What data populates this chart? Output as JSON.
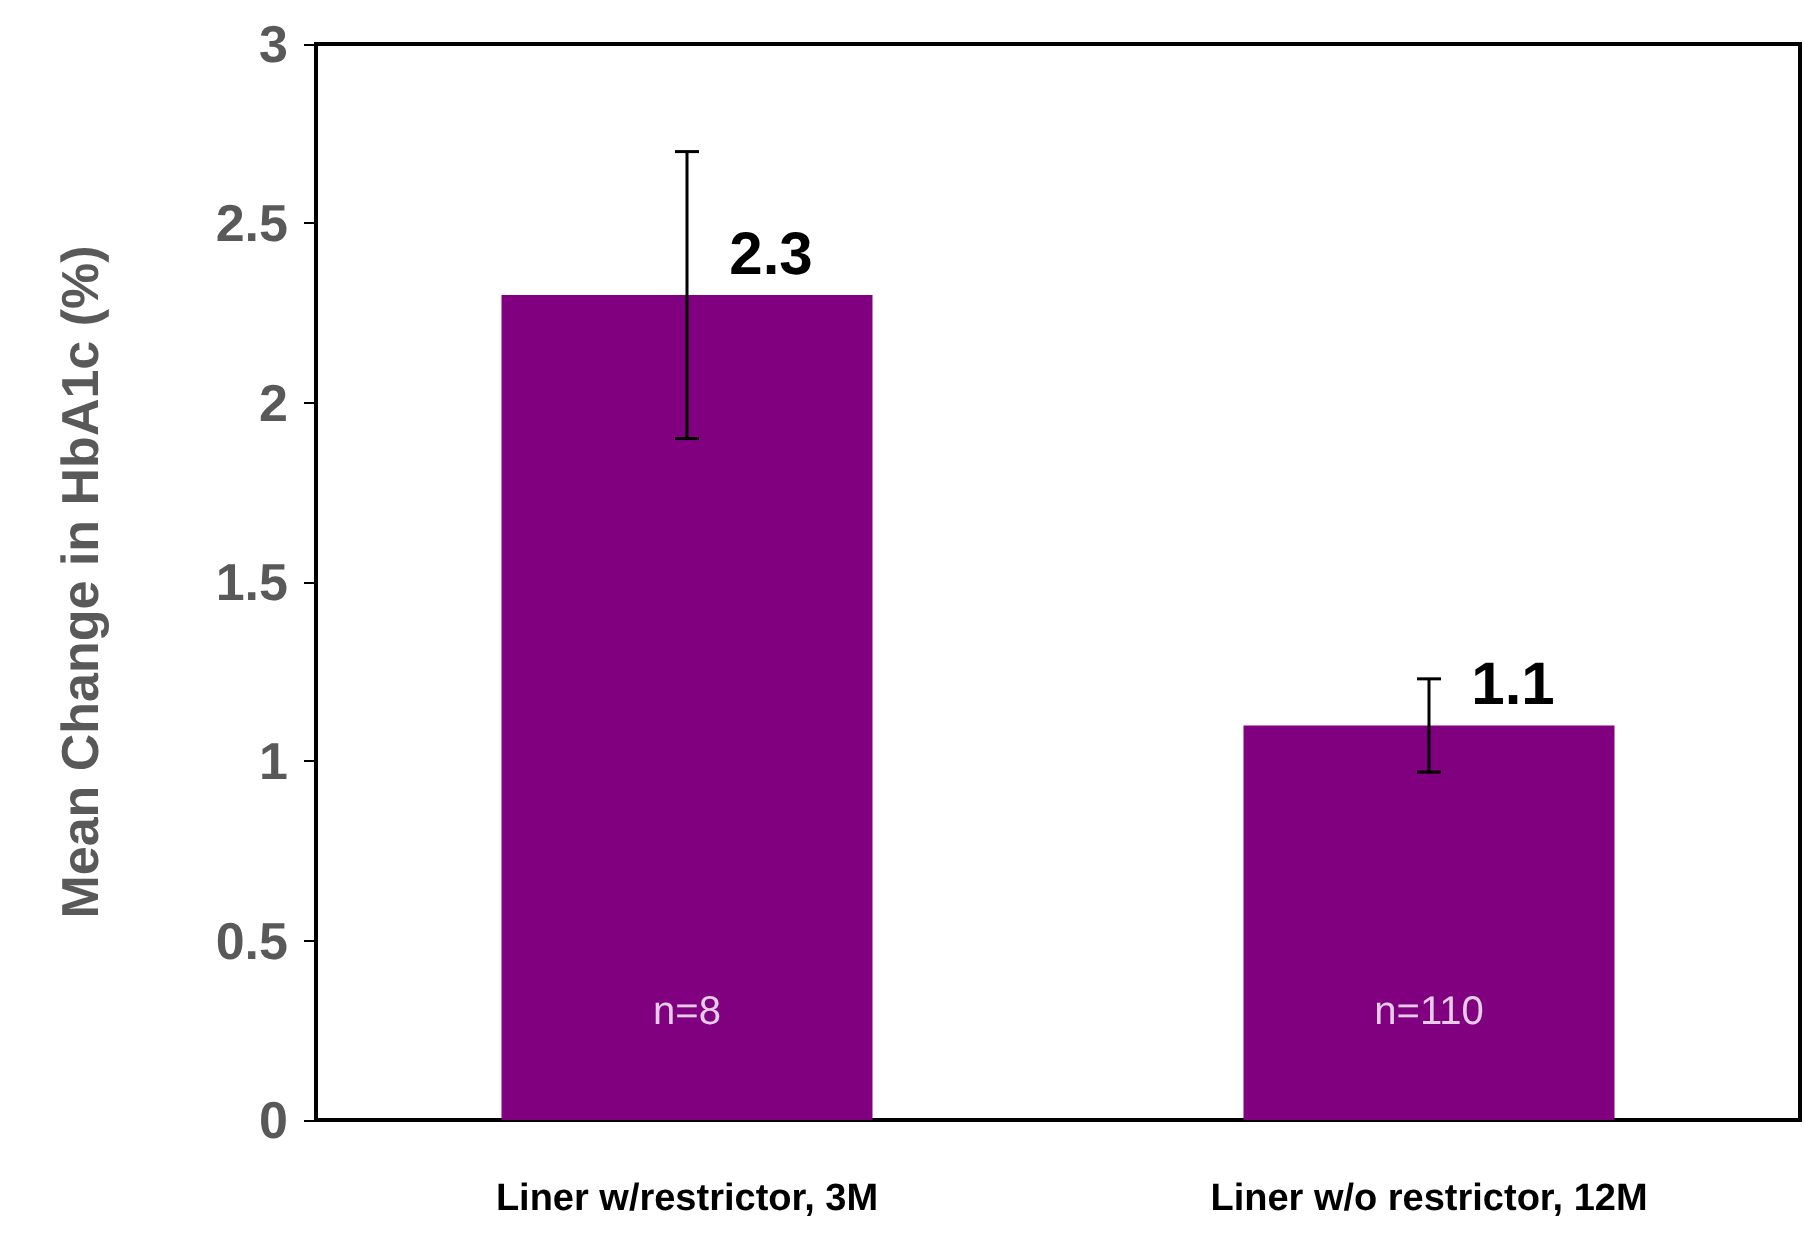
{
  "chart_data": {
    "type": "bar",
    "ylabel": "Mean Change in HbA1c (%)",
    "categories": [
      "Liner w/restrictor, 3M",
      "Liner w/o restrictor, 12M"
    ],
    "values": [
      2.3,
      1.1
    ],
    "color": "#800080",
    "errors": [
      0.4,
      [
        0.97,
        1.23
      ]
    ],
    "ylim": [
      0,
      3
    ],
    "yticks": [
      0,
      0.5,
      1,
      1.5,
      2,
      2.5,
      3
    ],
    "grid": false,
    "data_labels": true,
    "annotations": [
      "n=8",
      "n=110"
    ]
  }
}
